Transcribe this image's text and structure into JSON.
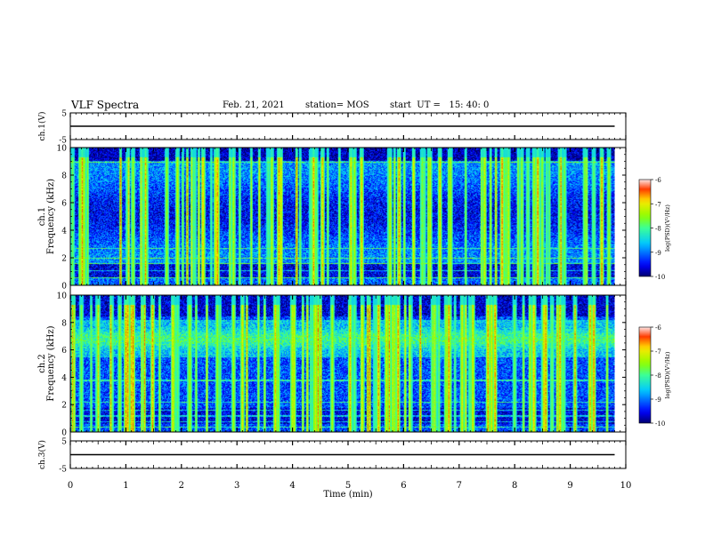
{
  "header": {
    "title": "VLF Spectra",
    "date": "Feb. 21, 2021",
    "station": "station= MOS",
    "start": "start  UT =   15: 40: 0"
  },
  "chart_data": [
    {
      "type": "line",
      "panel": "ch1-waveform",
      "ylabel": "ch.1(V)",
      "ylim": [
        -5,
        5
      ],
      "yticks": [
        "5",
        "-5"
      ],
      "xlim": [
        0,
        10
      ],
      "series": [
        {
          "x": [
            0,
            9.8
          ],
          "y": [
            0,
            0
          ]
        }
      ]
    },
    {
      "type": "heatmap",
      "panel": "ch1-spectrogram",
      "ylabel_top": "ch.1",
      "ylabel": "Frequency (kHz)",
      "ylim": [
        0,
        10
      ],
      "yticks": [
        "0",
        "2",
        "4",
        "6",
        "8",
        "10"
      ],
      "xlim": [
        0,
        10
      ],
      "data_extent_x": [
        0,
        9.8
      ],
      "colorbar": {
        "label": "log(PSD)(V²/Hz)",
        "range": [
          -10,
          -6
        ],
        "ticks": [
          "-6",
          "-7",
          "-8",
          "-9",
          "-10"
        ]
      }
    },
    {
      "type": "heatmap",
      "panel": "ch2-spectrogram",
      "ylabel_top": "ch.2",
      "ylabel": "Frequency (kHz)",
      "ylim": [
        0,
        10
      ],
      "yticks": [
        "0",
        "2",
        "4",
        "6",
        "8",
        "10"
      ],
      "xlim": [
        0,
        10
      ],
      "data_extent_x": [
        0,
        9.8
      ],
      "colorbar": {
        "label": "log(PSD)(V²/Hz)",
        "range": [
          -10,
          -6
        ],
        "ticks": [
          "-6",
          "-7",
          "-8",
          "-9",
          "-10"
        ]
      }
    },
    {
      "type": "line",
      "panel": "ch3-waveform",
      "ylabel": "ch.3(V)",
      "ylim": [
        -5,
        5
      ],
      "yticks": [
        "5",
        "-5"
      ],
      "xlim": [
        0,
        10
      ],
      "xlabel": "Time  (min)",
      "xticks": [
        "0",
        "1",
        "2",
        "3",
        "4",
        "5",
        "6",
        "7",
        "8",
        "9",
        "10"
      ],
      "series": [
        {
          "x": [
            0,
            9.8
          ],
          "y": [
            0,
            0
          ]
        }
      ]
    }
  ]
}
